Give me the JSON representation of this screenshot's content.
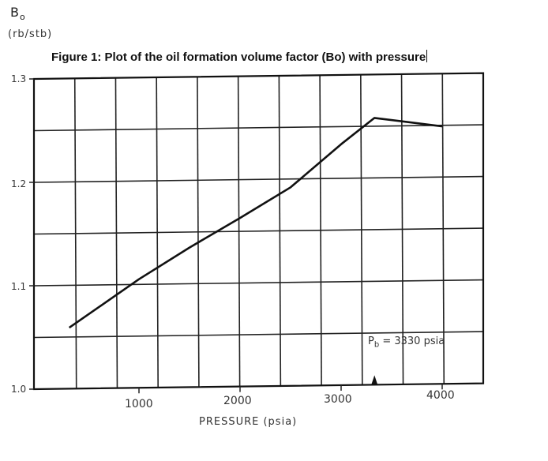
{
  "figure": {
    "title": "Figure 1: Plot of the oil formation volume factor (Bo) with pressure",
    "ylabel_symbol": "B",
    "ylabel_subscript": "o",
    "ylabel_unit": "(rb/stb)",
    "xlabel": "PRESSURE (psia)",
    "annotation_symbol": "P",
    "annotation_subscript": "b",
    "annotation_text": " = 3330 psia",
    "yticks": [
      "1.3",
      "1.2",
      "1.1",
      "1.0"
    ],
    "xticks": [
      "1000",
      "2000",
      "3000",
      "4000"
    ]
  },
  "chart_data": {
    "type": "line",
    "title": "Figure 1: Plot of the oil formation volume factor (Bo) with pressure",
    "xlabel": "PRESSURE (psia)",
    "ylabel": "Bo (rb/stb)",
    "xlim": [
      0,
      4400
    ],
    "ylim": [
      1.0,
      1.3
    ],
    "xticks": [
      1000,
      2000,
      3000,
      4000
    ],
    "yticks": [
      1.0,
      1.1,
      1.2,
      1.3
    ],
    "grid": true,
    "legend": null,
    "series": [
      {
        "name": "Bo",
        "x": [
          310,
          1000,
          1500,
          2000,
          2500,
          3000,
          3330,
          4000
        ],
        "values": [
          1.059,
          1.105,
          1.135,
          1.163,
          1.192,
          1.233,
          1.258,
          1.249
        ]
      }
    ],
    "annotations": [
      {
        "text": "Pb = 3330 psia",
        "x": 3330,
        "y": 1.0,
        "marker": "triangle"
      }
    ]
  }
}
